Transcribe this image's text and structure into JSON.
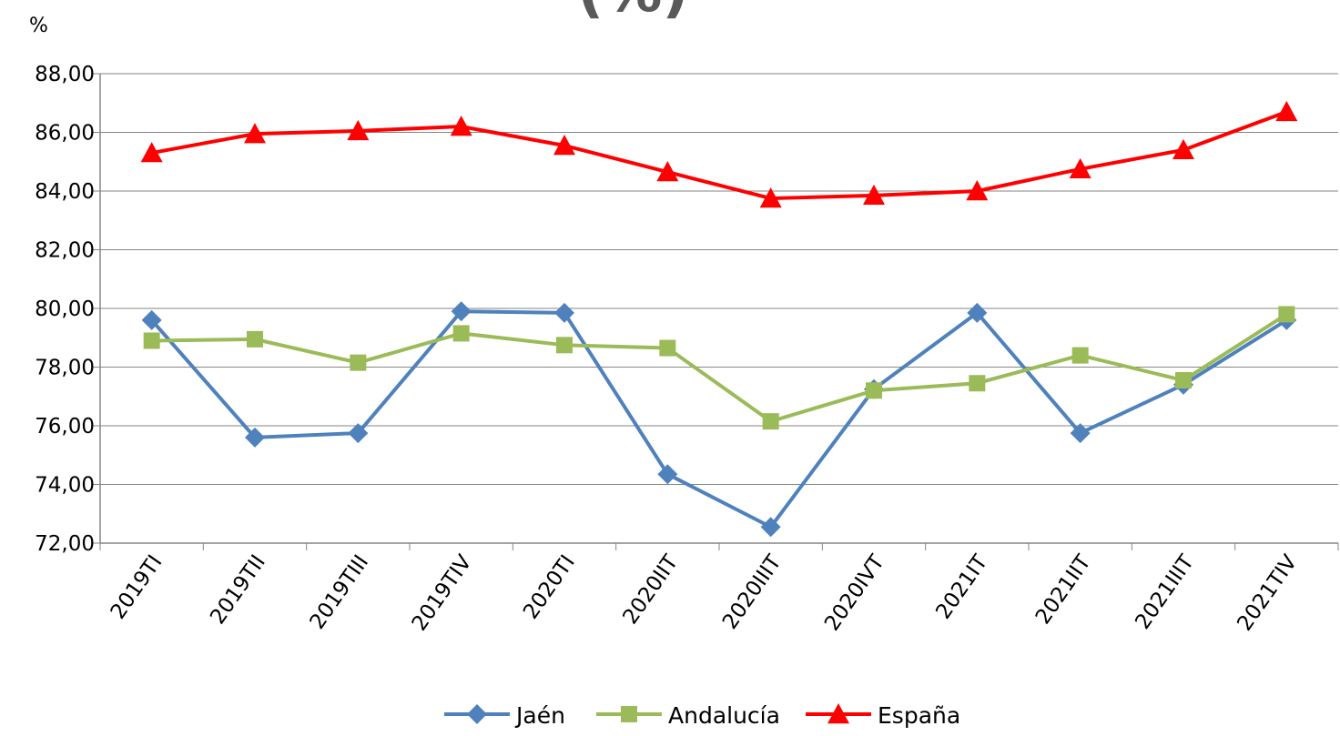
{
  "chart_data": {
    "type": "line",
    "title_fragment": "(%)",
    "ylabel": "%",
    "xlabel": "",
    "ylim": [
      72,
      88
    ],
    "ytick_step": 2,
    "ytick_labels": [
      "72,00",
      "74,00",
      "76,00",
      "78,00",
      "80,00",
      "82,00",
      "84,00",
      "86,00",
      "88,00"
    ],
    "grid": "horizontal",
    "legend_position": "bottom",
    "categories": [
      "2019TI",
      "2019TII",
      "2019TIII",
      "2019TIV",
      "2020TI",
      "2020IIT",
      "2020IIIT",
      "2020IVT",
      "2021IT",
      "2021IIT",
      "2021IIIT",
      "2021TIV"
    ],
    "series": [
      {
        "name": "Jaén",
        "color": "#4f81bd",
        "marker": "diamond",
        "values": [
          79.6,
          75.6,
          75.75,
          79.9,
          79.85,
          74.35,
          72.55,
          77.25,
          79.85,
          75.75,
          77.4,
          79.6
        ]
      },
      {
        "name": "Andalucía",
        "color": "#9bbb59",
        "marker": "square",
        "values": [
          78.9,
          78.95,
          78.15,
          79.15,
          78.75,
          78.65,
          76.15,
          77.2,
          77.45,
          78.4,
          77.55,
          79.8
        ]
      },
      {
        "name": "España",
        "color": "#ff0000",
        "marker": "triangle",
        "values": [
          85.3,
          85.95,
          86.05,
          86.2,
          85.55,
          84.65,
          83.75,
          83.85,
          84.0,
          84.75,
          85.4,
          86.7
        ]
      }
    ]
  }
}
